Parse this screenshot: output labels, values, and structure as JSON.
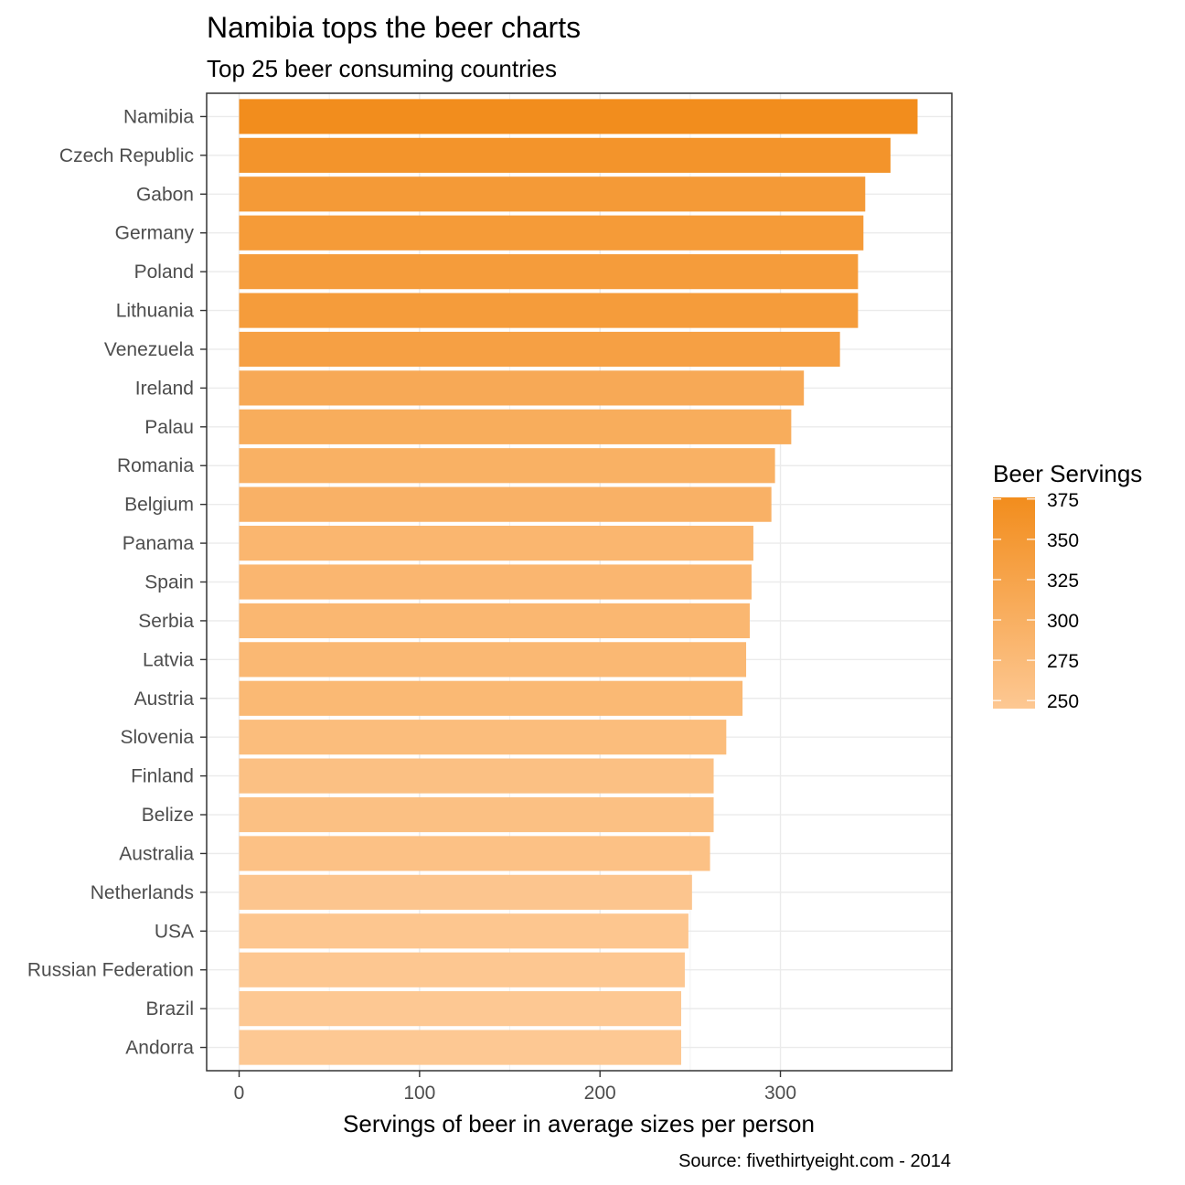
{
  "chart_data": {
    "type": "bar",
    "orientation": "horizontal",
    "title": "Namibia tops the beer charts",
    "subtitle": "Top 25 beer consuming countries",
    "xlabel": "Servings of beer in average sizes per person",
    "ylabel": "",
    "caption": "Source: fivethirtyeight.com - 2014",
    "xlim": [
      -18,
      395
    ],
    "xticks": [
      0,
      100,
      200,
      300
    ],
    "grid": true,
    "legend": {
      "title": "Beer Servings",
      "position": "right",
      "type": "colorbar",
      "ticks": [
        375,
        350,
        325,
        300,
        275,
        250
      ],
      "range": [
        245,
        376
      ],
      "low_color": "#fdc893",
      "high_color": "#f28d1d"
    },
    "categories": [
      "Namibia",
      "Czech Republic",
      "Gabon",
      "Germany",
      "Poland",
      "Lithuania",
      "Venezuela",
      "Ireland",
      "Palau",
      "Romania",
      "Belgium",
      "Panama",
      "Spain",
      "Serbia",
      "Latvia",
      "Austria",
      "Slovenia",
      "Finland",
      "Belize",
      "Australia",
      "Netherlands",
      "USA",
      "Russian Federation",
      "Brazil",
      "Andorra"
    ],
    "values": [
      376,
      361,
      347,
      346,
      343,
      343,
      333,
      313,
      306,
      297,
      295,
      285,
      284,
      283,
      281,
      279,
      270,
      263,
      263,
      261,
      251,
      249,
      247,
      245,
      245
    ]
  }
}
